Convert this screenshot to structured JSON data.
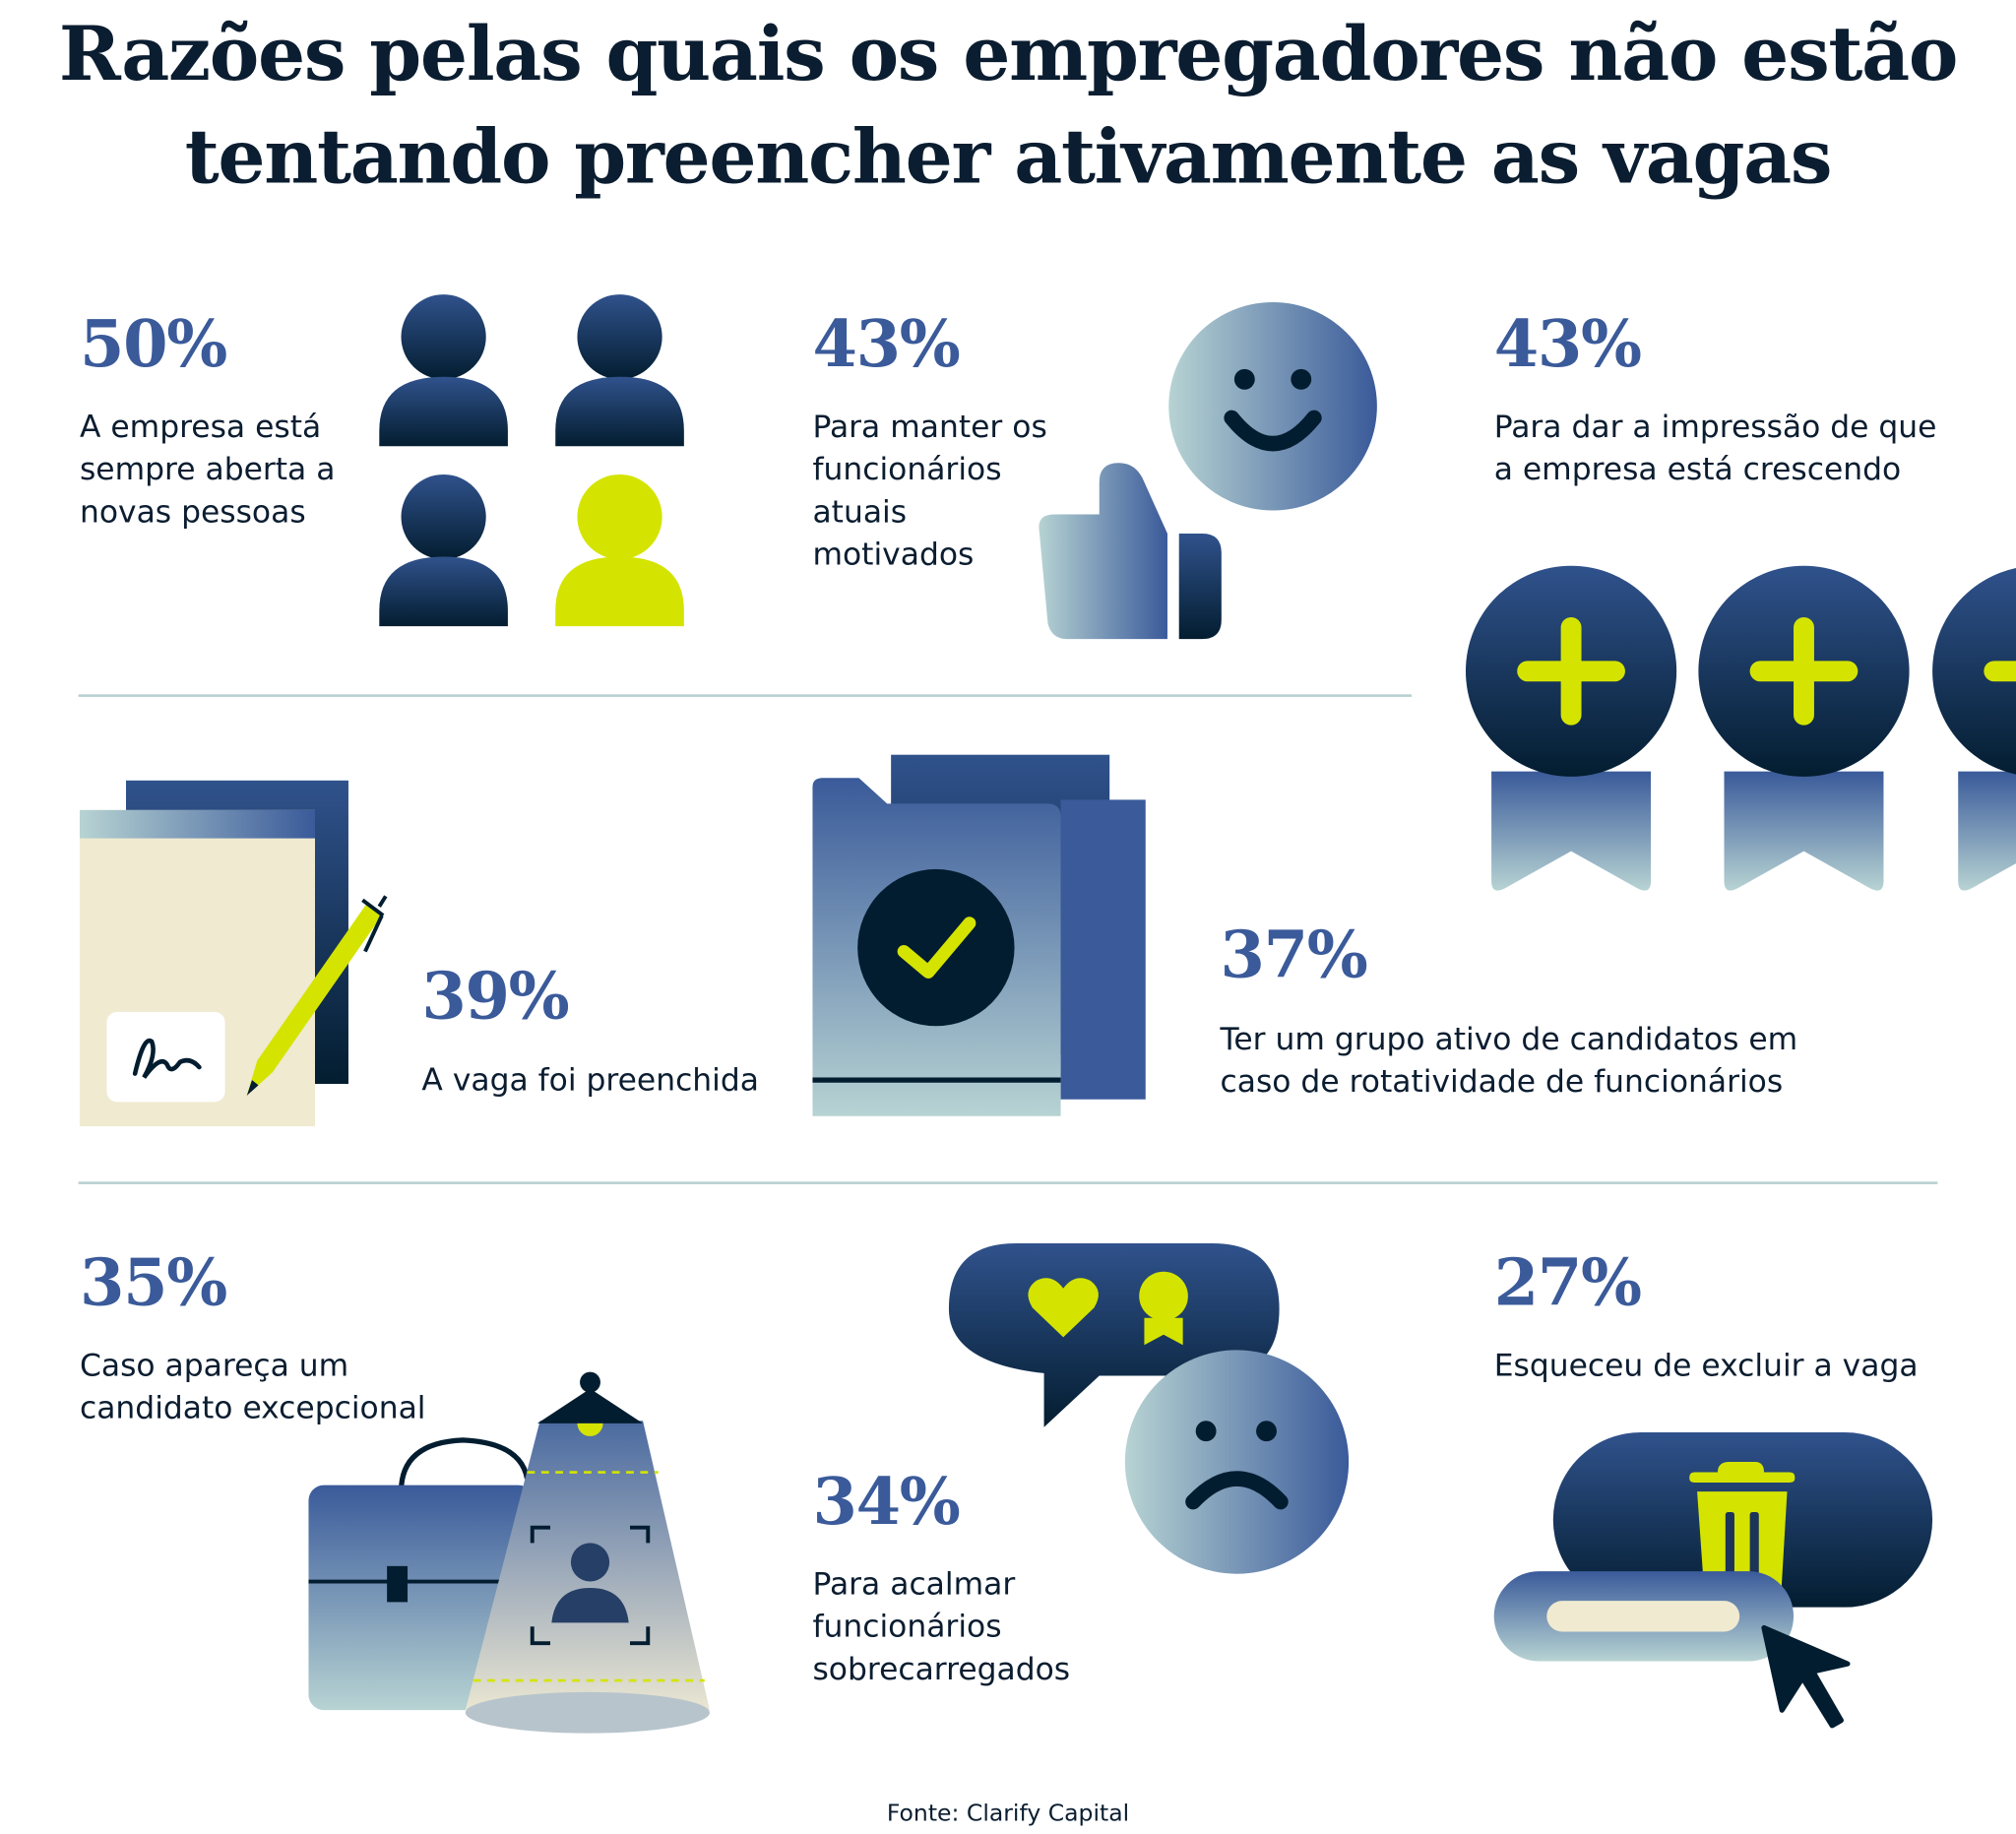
{
  "title": {
    "line1": "Razões pelas quais os empregadores não estão",
    "line2": "tentando preencher ativamente as vagas"
  },
  "colors": {
    "navy": "#031d30",
    "blue": "#3a5a9a",
    "accent": "#d4e400",
    "cream": "#f0ead0",
    "light": "#b7d3d3"
  },
  "items": [
    {
      "percent": "50%",
      "text": "A empresa está\nsempre aberta a\nnovas pessoas",
      "icon": "people-icon"
    },
    {
      "percent": "43%",
      "text": "Para manter os\nfuncionários\natuais\nmotivados",
      "icon": "thumbs-up-smiley-icon"
    },
    {
      "percent": "43%",
      "text": "Para dar a impressão de que\na empresa está crescendo",
      "icon": "plus-medal-icon"
    },
    {
      "percent": "39%",
      "text": "A vaga foi preenchida",
      "icon": "signed-document-icon"
    },
    {
      "percent": "37%",
      "text": "Ter um grupo ativo de candidatos em\ncaso de rotatividade de funcionários",
      "icon": "folder-check-icon"
    },
    {
      "percent": "35%",
      "text": "Caso apareça um\ncandidato excepcional",
      "icon": "briefcase-spotlight-icon"
    },
    {
      "percent": "34%",
      "text": "Para acalmar\nfuncionários\nsobrecarregados",
      "icon": "chat-sad-face-icon"
    },
    {
      "percent": "27%",
      "text": "Esqueceu de excluir a vaga",
      "icon": "delete-button-cursor-icon"
    }
  ],
  "source": "Fonte: Clarify Capital"
}
